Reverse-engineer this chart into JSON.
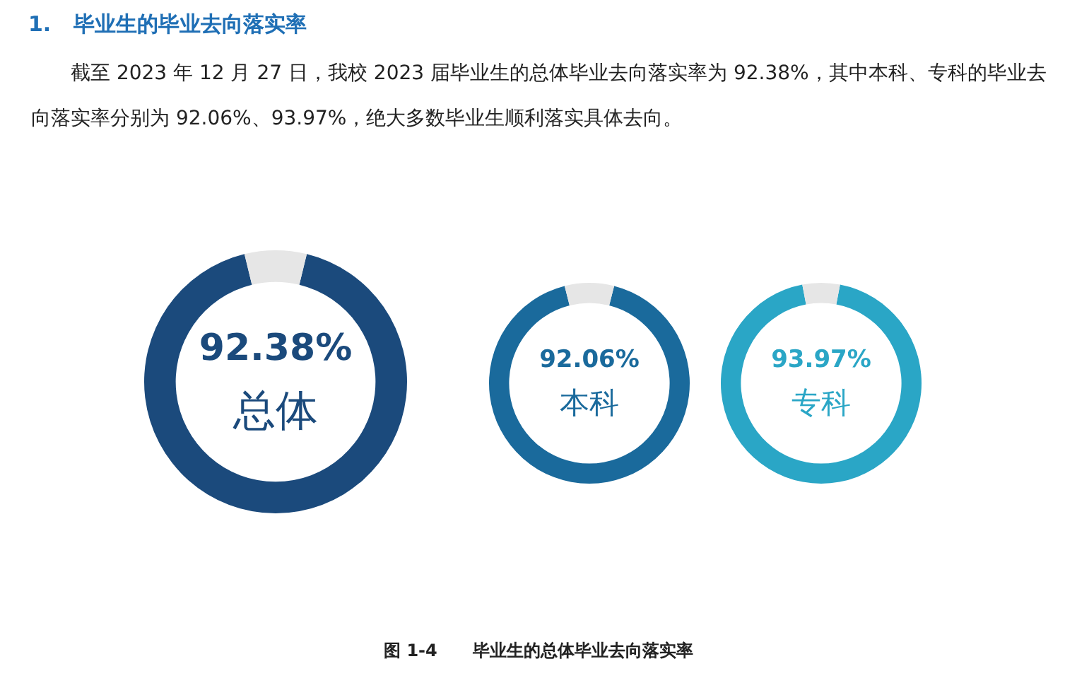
{
  "chart_data": [
    {
      "type": "donut",
      "title": "1.   毕业生的毕业去向落实率",
      "subtitle": "截至 2023 年 12 月 27 日，我校 2023 届毕业生的总体毕业去向落实率为 92.38%，其中本科、专科的毕业去向落实率分别为 92.06%、93.97%，绝大多数毕业生顺利落实具体去向。",
      "annotations": [
        "图 1-4      毕业生的总体毕业去向落实率"
      ],
      "categories": [
        "总体",
        null
      ],
      "values": [
        92.38,
        7.62
      ],
      "value_labels": [
        "92.38%",
        null
      ],
      "colors": [
        "#1b4a7c",
        "#e6e6e6"
      ]
    },
    {
      "type": "donut",
      "categories": [
        "本科",
        null
      ],
      "values": [
        92.06,
        7.94
      ],
      "value_labels": [
        "92.06%",
        null
      ],
      "colors": [
        "#1a6a9c",
        "#e6e6e6"
      ]
    },
    {
      "type": "donut",
      "categories": [
        "专科",
        null
      ],
      "values": [
        93.97,
        6.03
      ],
      "value_labels": [
        "93.97%",
        null
      ],
      "colors": [
        "#2aa6c6",
        "#e6e6e6"
      ]
    }
  ]
}
